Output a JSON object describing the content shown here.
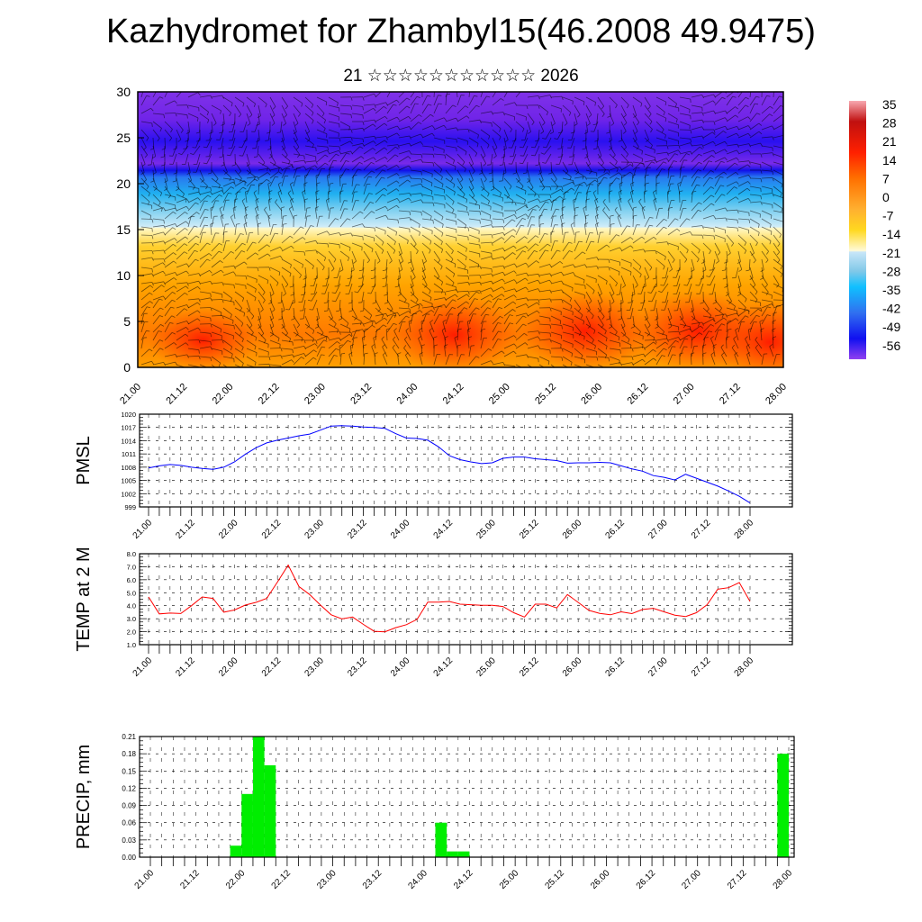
{
  "header": {
    "title": "Kazhydromet for Zhambyl15(46.2008 49.9475)",
    "subtitle": "21 ☆☆☆☆☆☆☆☆☆☆☆ 2026"
  },
  "x_tick_labels": [
    "21.00",
    "21.12",
    "22.00",
    "22.12",
    "23.00",
    "23.12",
    "24.00",
    "24.12",
    "25.00",
    "25.12",
    "26.00",
    "26.12",
    "27.00",
    "27.12",
    "28.00"
  ],
  "chart_data": [
    {
      "type": "heatmap",
      "name": "temperature-wind-cross-section",
      "ylim": [
        0,
        30
      ],
      "yticks": [
        "0",
        "5",
        "10",
        "15",
        "20",
        "25",
        "30"
      ],
      "colorbar": {
        "labels": [
          "35",
          "28",
          "21",
          "14",
          "7",
          "0",
          "-7",
          "-14",
          "-21",
          "-28",
          "-35",
          "-42",
          "-49",
          "-56"
        ]
      },
      "warm_cores_x": [
        "21.15",
        "24.06",
        "25.12",
        "26.18",
        "27.21"
      ]
    },
    {
      "type": "line",
      "name": "pmsl",
      "ylabel": "PMSL",
      "ylim": [
        999,
        1020
      ],
      "yticks": [
        "999",
        "1002",
        "1005",
        "1008",
        "1011",
        "1014",
        "1017",
        "1020"
      ],
      "color": "#0000ff",
      "step_hours": 3,
      "values": [
        1007.8,
        1008.3,
        1008.6,
        1008.4,
        1008.0,
        1007.7,
        1007.5,
        1008.0,
        1009.2,
        1010.9,
        1012.4,
        1013.5,
        1014.1,
        1014.6,
        1015.1,
        1015.5,
        1016.4,
        1017.3,
        1017.4,
        1017.3,
        1017.1,
        1017.0,
        1016.8,
        1015.6,
        1014.6,
        1014.5,
        1014.1,
        1012.6,
        1010.6,
        1009.7,
        1009.2,
        1008.8,
        1009.0,
        1010.0,
        1010.3,
        1010.3,
        1009.9,
        1009.7,
        1009.5,
        1008.9,
        1009.0,
        1009.0,
        1009.1,
        1009.0,
        1008.3,
        1007.6,
        1007.1,
        1006.1,
        1005.7,
        1005.1,
        1006.4,
        1005.5,
        1004.6,
        1003.7,
        1002.6,
        1001.4,
        999.9
      ]
    },
    {
      "type": "line",
      "name": "temp-2m",
      "ylabel": "TEMP at 2 M",
      "ylim": [
        1.0,
        8.0
      ],
      "yticks": [
        "1.0",
        "2.0",
        "3.0",
        "4.0",
        "5.0",
        "6.0",
        "7.0",
        "8.0"
      ],
      "color": "#ff0000",
      "step_hours": 3,
      "values": [
        4.67,
        3.37,
        3.43,
        3.4,
        4.0,
        4.67,
        4.56,
        3.5,
        3.67,
        4.05,
        4.26,
        4.56,
        5.82,
        7.13,
        5.48,
        4.86,
        4.05,
        3.3,
        2.98,
        3.13,
        2.56,
        2.03,
        1.99,
        2.31,
        2.54,
        2.95,
        4.28,
        4.28,
        4.33,
        4.12,
        4.08,
        4.03,
        4.03,
        3.94,
        3.46,
        3.13,
        4.12,
        4.12,
        3.83,
        4.86,
        4.26,
        3.64,
        3.41,
        3.3,
        3.53,
        3.39,
        3.71,
        3.8,
        3.53,
        3.27,
        3.16,
        3.46,
        4.08,
        5.27,
        5.39,
        5.78,
        4.33
      ]
    },
    {
      "type": "bar",
      "name": "precip",
      "ylabel": "PRECIP, mm",
      "ylim": [
        0,
        0.21
      ],
      "yticks": [
        "0.00",
        "0.03",
        "0.06",
        "0.09",
        "0.12",
        "0.15",
        "0.18",
        "0.21"
      ],
      "color": "#00ee00",
      "step_hours": 3,
      "values": [
        0,
        0,
        0,
        0,
        0,
        0,
        0,
        0,
        0.02,
        0.11,
        0.21,
        0.16,
        0,
        0,
        0,
        0,
        0,
        0,
        0,
        0,
        0,
        0,
        0,
        0,
        0,
        0,
        0.06,
        0.01,
        0.01,
        0,
        0,
        0,
        0,
        0,
        0,
        0,
        0,
        0,
        0,
        0,
        0,
        0,
        0,
        0,
        0,
        0,
        0,
        0,
        0,
        0,
        0,
        0,
        0,
        0,
        0,
        0,
        0.18
      ]
    }
  ]
}
